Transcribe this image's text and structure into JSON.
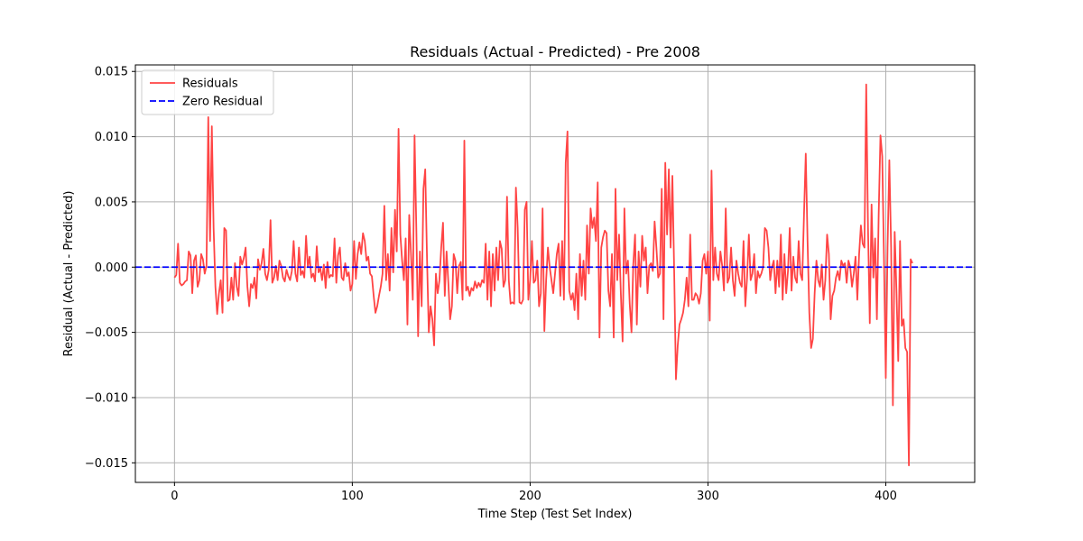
{
  "chart_data": {
    "type": "line",
    "title": "Residuals (Actual - Predicted) - Pre 2008",
    "xlabel": "Time Step (Test Set Index)",
    "ylabel": "Residual (Actual - Predicted)",
    "xlim": [
      -22,
      450
    ],
    "ylim": [
      -0.0165,
      0.0155
    ],
    "xticks": [
      0,
      100,
      200,
      300,
      400
    ],
    "xtick_labels": [
      "0",
      "100",
      "200",
      "300",
      "400"
    ],
    "yticks": [
      -0.015,
      -0.01,
      -0.005,
      0.0,
      0.005,
      0.01,
      0.015
    ],
    "ytick_labels": [
      "−0.015",
      "−0.010",
      "−0.005",
      "0.000",
      "0.005",
      "0.010",
      "0.015"
    ],
    "grid": true,
    "legend": {
      "placement": "top-left",
      "entries": [
        "Residuals",
        "Zero Residual"
      ]
    },
    "series": [
      {
        "name": "Residuals",
        "color": "#ff4444",
        "style": "solid",
        "x_start": 0,
        "x_step": 1,
        "values": [
          -0.0008,
          -0.0006,
          0.0018,
          -0.0012,
          -0.0014,
          -0.0013,
          -0.0011,
          -0.001,
          0.0012,
          0.0009,
          -0.002,
          0.0005,
          0.0009,
          -0.0015,
          -0.001,
          0.001,
          0.0006,
          -0.0005,
          0.0001,
          0.0115,
          0.002,
          0.0108,
          0.003,
          -0.0015,
          -0.0036,
          -0.002,
          -0.001,
          -0.0035,
          0.003,
          0.0028,
          -0.0026,
          -0.0025,
          -0.0008,
          -0.0025,
          0.0003,
          -0.0015,
          -0.0022,
          0.0008,
          0.0002,
          0.0007,
          0.0015,
          -0.0015,
          -0.003,
          -0.0013,
          -0.0016,
          -0.0008,
          -0.0024,
          0.0006,
          -0.0002,
          0.0003,
          0.0014,
          -0.0005,
          -0.001,
          -0.0002,
          0.0036,
          -0.0012,
          -0.0008,
          0.0001,
          -0.001,
          0.0005,
          0.0001,
          -0.0008,
          -0.0011,
          -0.0002,
          -0.0007,
          -0.001,
          -0.0003,
          0.002,
          -0.0005,
          -0.0011,
          0.0015,
          -0.0006,
          -0.0003,
          -0.0008,
          0.0024,
          0.0,
          0.0008,
          -0.0008,
          -0.0005,
          -0.0011,
          0.0016,
          -0.0004,
          -0.0001,
          -0.001,
          0.0002,
          -0.0016,
          0.0004,
          -0.0008,
          -0.0006,
          -0.0007,
          0.0022,
          -0.0012,
          0.0009,
          0.0015,
          -0.0008,
          -0.001,
          0.0003,
          -0.0007,
          -0.0004,
          -0.0018,
          -0.0013,
          0.002,
          -0.0009,
          0.001,
          0.0019,
          0.001,
          0.0026,
          0.002,
          0.0005,
          0.0008,
          -0.0005,
          -0.0007,
          -0.0022,
          -0.0035,
          -0.003,
          -0.0022,
          -0.0015,
          -0.0005,
          0.0047,
          -0.001,
          0.001,
          -0.0018,
          0.003,
          -0.0004,
          0.0044,
          0.0012,
          0.0106,
          0.0025,
          0.0005,
          -0.001,
          0.0022,
          -0.0044,
          0.004,
          0.001,
          -0.0025,
          0.0101,
          0.003,
          -0.0053,
          0.0012,
          -0.003,
          0.006,
          0.0075,
          0.0007,
          -0.005,
          -0.003,
          -0.004,
          -0.006,
          -0.0005,
          -0.002,
          -0.001,
          0.0015,
          0.0034,
          -0.0022,
          0.0012,
          -0.0012,
          -0.004,
          -0.003,
          0.001,
          0.0005,
          -0.002,
          0.0001,
          0.0004,
          -0.0025,
          0.0097,
          -0.0018,
          -0.0015,
          -0.0022,
          -0.0016,
          -0.0018,
          -0.0011,
          -0.0016,
          -0.0012,
          -0.0015,
          -0.001,
          -0.0012,
          0.0018,
          -0.0025,
          0.0012,
          -0.003,
          0.001,
          -0.0018,
          0.0015,
          -0.001,
          0.002,
          0.0014,
          -0.0015,
          -0.001,
          0.0054,
          -0.001,
          -0.0028,
          -0.0027,
          -0.0028,
          0.0061,
          0.003,
          -0.0027,
          -0.0028,
          -0.0025,
          0.0044,
          0.005,
          -0.0025,
          -0.001,
          0.002,
          -0.0012,
          -0.001,
          0.0005,
          -0.003,
          -0.002,
          0.0045,
          -0.0049,
          -0.001,
          0.0015,
          0.0,
          -0.001,
          -0.002,
          -0.0005,
          0.001,
          0.0018,
          -0.0022,
          0.002,
          -0.0025,
          0.008,
          0.0104,
          -0.0018,
          -0.0025,
          -0.002,
          -0.0033,
          -0.0005,
          -0.004,
          0.001,
          -0.0022,
          0.0005,
          -0.0025,
          0.0032,
          -0.0005,
          0.0045,
          0.003,
          0.0038,
          0.002,
          0.0065,
          -0.0054,
          0.0015,
          0.0023,
          0.0028,
          0.0026,
          -0.0018,
          -0.003,
          0.001,
          -0.0054,
          0.006,
          -0.001,
          0.0025,
          -0.002,
          -0.0057,
          0.0045,
          -0.0005,
          0.0005,
          -0.0028,
          -0.005,
          0.0002,
          0.0025,
          -0.0044,
          0.0012,
          -0.0015,
          0.0024,
          0.0005,
          0.0015,
          -0.002,
          0.0001,
          0.0003,
          -0.0003,
          0.0035,
          0.0015,
          -0.0008,
          -0.0005,
          0.006,
          -0.004,
          0.008,
          0.0025,
          0.0075,
          0.0015,
          0.007,
          -0.0003,
          -0.0086,
          -0.006,
          -0.0044,
          -0.004,
          -0.0035,
          -0.0025,
          -0.0008,
          -0.003,
          0.0025,
          -0.0025,
          -0.0025,
          -0.002,
          -0.0022,
          -0.0028,
          -0.002,
          0.0005,
          0.001,
          -0.0005,
          0.0012,
          -0.0041,
          0.0074,
          -0.001,
          0.0015,
          -0.0005,
          -0.001,
          0.0012,
          0.0001,
          -0.0018,
          0.0045,
          -0.0012,
          -0.0008,
          0.0015,
          -0.001,
          -0.0022,
          0.0005,
          -0.0005,
          -0.0012,
          -0.0015,
          0.002,
          -0.003,
          -0.0008,
          0.0025,
          -0.001,
          -0.0005,
          0.001,
          -0.002,
          -0.0003,
          -0.0008,
          -0.0005,
          0.0,
          0.003,
          0.0028,
          0.0015,
          -0.001,
          0.0,
          0.0005,
          -0.002,
          0.0005,
          -0.0015,
          0.0025,
          -0.0025,
          0.001,
          -0.002,
          -0.0003,
          0.003,
          -0.0018,
          0.0008,
          -0.0008,
          -0.0012,
          0.002,
          -0.0005,
          -0.001,
          0.004,
          0.0087,
          0.002,
          -0.0035,
          -0.0062,
          -0.0055,
          -0.002,
          0.0005,
          -0.001,
          -0.0015,
          0.0002,
          -0.0025,
          -0.001,
          0.0025,
          0.001,
          -0.004,
          -0.0022,
          -0.0018,
          -0.0008,
          -0.0003,
          -0.001,
          0.0005,
          0.0001,
          0.0003,
          -0.0012,
          0.0005,
          0.0,
          -0.0015,
          -0.0005,
          0.0008,
          -0.0025,
          0.001,
          0.0032,
          0.0018,
          0.0015,
          0.014,
          0.003,
          -0.0043,
          0.0048,
          -0.0008,
          0.0022,
          -0.004,
          0.004,
          0.0101,
          0.0085,
          0.0005,
          -0.0085,
          0.0015,
          0.0082,
          0.0015,
          -0.0106,
          0.0027,
          -0.0018,
          -0.0072,
          0.002,
          -0.0045,
          -0.004,
          -0.0062,
          -0.0065,
          -0.0152,
          0.0006,
          0.0003
        ]
      },
      {
        "name": "Zero Residual",
        "color": "#0000ff",
        "style": "dashed",
        "y": 0.0
      }
    ]
  }
}
